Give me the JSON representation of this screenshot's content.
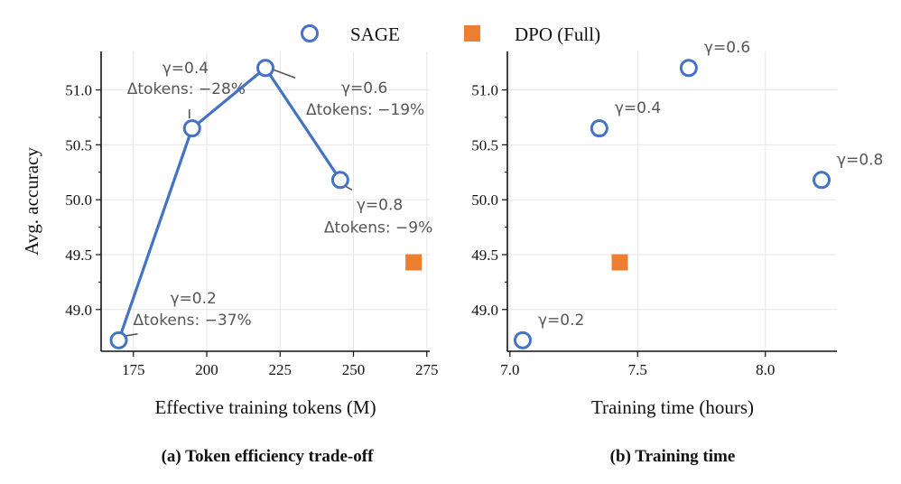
{
  "legend": {
    "sage_label": "SAGE",
    "dpo_label": "DPO (Full)"
  },
  "colors": {
    "sage": "#4472C4",
    "dpo": "#ED7D31",
    "annotation": "#555555"
  },
  "chart_data": [
    {
      "type": "line",
      "caption": "(a) Token efficiency trade-off",
      "xlabel": "Effective training tokens (M)",
      "ylabel": "Avg. accuracy",
      "xlim": [
        164,
        276
      ],
      "ylim": [
        48.62,
        51.35
      ],
      "xticks": [
        175,
        200,
        225,
        250,
        275
      ],
      "xtick_labels": [
        "175",
        "200",
        "225",
        "250",
        "275"
      ],
      "yticks": [
        49.0,
        49.5,
        50.0,
        50.5,
        51.0
      ],
      "ytick_labels": [
        "49.0",
        "49.5",
        "50.0",
        "50.5",
        "51.0"
      ],
      "series": [
        {
          "name": "SAGE",
          "x": [
            170,
            195,
            220,
            245.5
          ],
          "y": [
            48.72,
            50.65,
            51.2,
            50.18
          ],
          "labels": [
            {
              "gamma": "γ=0.2",
              "tokens": "Δtokens: −37%"
            },
            {
              "gamma": "γ=0.4",
              "tokens": "Δtokens: −28%"
            },
            {
              "gamma": "γ=0.6",
              "tokens": "Δtokens: −19%"
            },
            {
              "gamma": "γ=0.8",
              "tokens": "Δtokens: −9%"
            }
          ]
        },
        {
          "name": "DPO (Full)",
          "x": [
            270.5
          ],
          "y": [
            49.43
          ]
        }
      ]
    },
    {
      "type": "scatter",
      "caption": "(b) Training time",
      "xlabel": "Training time (hours)",
      "ylabel": "",
      "xlim": [
        6.99,
        8.28
      ],
      "ylim": [
        48.62,
        51.35
      ],
      "xticks": [
        7.0,
        7.5,
        8.0
      ],
      "xtick_labels": [
        "7.0",
        "7.5",
        "8.0"
      ],
      "yticks": [
        49.0,
        49.5,
        50.0,
        50.5,
        51.0
      ],
      "ytick_labels": [
        "49.0",
        "49.5",
        "50.0",
        "50.5",
        "51.0"
      ],
      "series": [
        {
          "name": "SAGE",
          "x": [
            7.05,
            7.35,
            7.7,
            8.22
          ],
          "y": [
            48.72,
            50.65,
            51.2,
            50.18
          ],
          "labels": [
            "γ=0.2",
            "γ=0.4",
            "γ=0.6",
            "γ=0.8"
          ]
        },
        {
          "name": "DPO (Full)",
          "x": [
            7.43
          ],
          "y": [
            49.43
          ]
        }
      ]
    }
  ]
}
